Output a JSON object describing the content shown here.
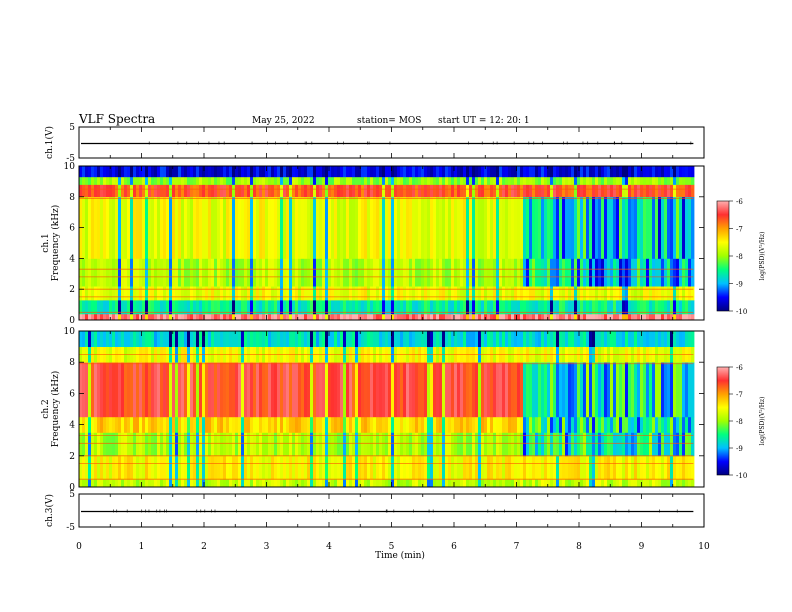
{
  "header": {
    "title": "VLF Spectra",
    "date": "May 25, 2022",
    "station": "station= MOS",
    "start_ut": "start  UT  =   12: 20: 1"
  },
  "colors": {
    "scale": [
      "#000080",
      "#0000ff",
      "#00c0ff",
      "#00ff80",
      "#a0ff00",
      "#ffff00",
      "#ffa000",
      "#ff3030",
      "#ffb0b0",
      "#ffffff"
    ],
    "axes": "#000000"
  },
  "chart_data": [
    {
      "type": "line",
      "ylabel": "ch.1(V)",
      "ylim": [
        -5,
        5
      ],
      "yticks": [
        "5",
        "-5"
      ],
      "x_range_min": [
        0,
        9.83
      ],
      "series": [
        {
          "values_description_free": true,
          "level": 0
        }
      ]
    },
    {
      "type": "heatmap",
      "ylabel": "ch.1 Frequency (kHz)",
      "ylim": [
        0,
        10
      ],
      "yticks": [
        "0",
        "2",
        "4",
        "6",
        "8",
        "10"
      ],
      "x_range_min": [
        0,
        9.83
      ],
      "colorbar": {
        "label": "log(PSD)(V²/Hz)",
        "range": [
          -10,
          -6
        ],
        "ticks": [
          "-6",
          "-7",
          "-8",
          "-9",
          "-10"
        ]
      },
      "bands_khz": [
        {
          "range": [
            0,
            0.4
          ],
          "value": -6.2
        },
        {
          "range": [
            0.4,
            1.3
          ],
          "value": -8.6
        },
        {
          "range": [
            1.3,
            2.2
          ],
          "value": -7.6
        },
        {
          "range": [
            2.2,
            4.0
          ],
          "value": -7.9
        },
        {
          "range": [
            4.0,
            8.0
          ],
          "value": -7.6
        },
        {
          "range": [
            8.0,
            8.8
          ],
          "value": -6.6
        },
        {
          "range": [
            8.8,
            9.3
          ],
          "value": -8.0
        },
        {
          "range": [
            9.3,
            10.0
          ],
          "value": -9.6
        }
      ],
      "late_segment": {
        "from_min": 7.1,
        "mid_band_value": -9.2
      }
    },
    {
      "type": "heatmap",
      "ylabel": "ch.2 Frequency (kHz)",
      "ylim": [
        0,
        10
      ],
      "yticks": [
        "0",
        "2",
        "4",
        "6",
        "8",
        "10"
      ],
      "x_range_min": [
        0,
        9.83
      ],
      "colorbar": {
        "label": "log(PSD)(V²/Hz)",
        "range": [
          -10,
          -6
        ],
        "ticks": [
          "-6",
          "-7",
          "-8",
          "-9",
          "-10"
        ]
      },
      "bands_khz": [
        {
          "range": [
            0,
            0.5
          ],
          "value": -7.8
        },
        {
          "range": [
            0.5,
            2.0
          ],
          "value": -7.5
        },
        {
          "range": [
            2.0,
            3.5
          ],
          "value": -7.9
        },
        {
          "range": [
            3.5,
            4.5
          ],
          "value": -7.3
        },
        {
          "range": [
            4.5,
            8.0
          ],
          "value": -6.5
        },
        {
          "range": [
            8.0,
            9.0
          ],
          "value": -7.6
        },
        {
          "range": [
            9.0,
            10.0
          ],
          "value": -8.8
        }
      ],
      "late_segment": {
        "from_min": 7.1,
        "mid_band_value": -9.0
      }
    },
    {
      "type": "line",
      "ylabel": "ch.3(V)",
      "ylim": [
        -5,
        5
      ],
      "yticks": [
        "5",
        "-5"
      ],
      "x_range_min": [
        0,
        9.83
      ],
      "series": [
        {
          "level": 0
        }
      ]
    }
  ],
  "xaxis": {
    "label": "Time  (min)",
    "range": [
      0,
      10
    ],
    "ticks": [
      "0",
      "1",
      "2",
      "3",
      "4",
      "5",
      "6",
      "7",
      "8",
      "9",
      "10"
    ]
  }
}
